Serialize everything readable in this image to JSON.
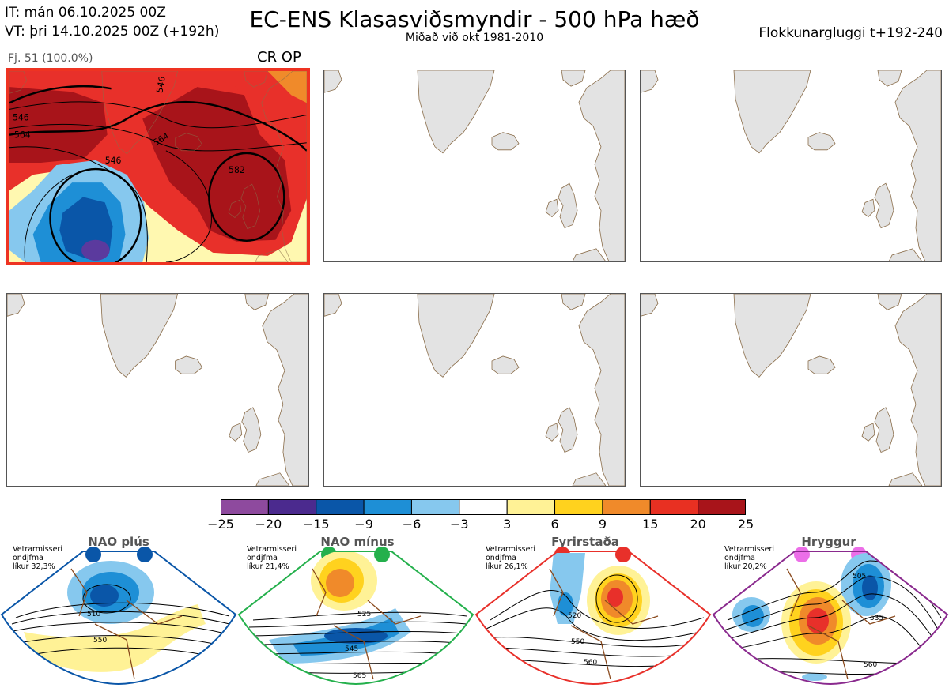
{
  "header": {
    "it_line": "IT: mán 06.10.2025 00Z",
    "vt_line": "VT: þri 14.10.2025 00Z  (+192h)",
    "title": "EC-ENS Klasasviðsmyndir - 500 hPa hæð",
    "subtitle": "Miðað við okt 1981-2010",
    "window": "Flokkunargluggi t+192-240"
  },
  "cluster": {
    "count_label": "Fj. 51 (100.0%)",
    "regime_label": "CR OP",
    "highlight_color": "#e8302a"
  },
  "maps": {
    "land_color": "#e3e3e3",
    "coast_color": "#8a6d4a"
  },
  "panel1_contours": [
    "546",
    "564",
    "546",
    "582",
    "546",
    "564"
  ],
  "colorbar": {
    "ticks": [
      "−25",
      "−20",
      "−15",
      "−9",
      "−6",
      "−3",
      "3",
      "6",
      "9",
      "15",
      "20",
      "25"
    ],
    "colors": [
      "#8e4a9e",
      "#4b2a8e",
      "#0a56a8",
      "#1e8fd6",
      "#86c8ee",
      "#ffffff",
      "#fff296",
      "#ffd21e",
      "#f08a2a",
      "#e83022",
      "#a8141a"
    ]
  },
  "regimes": [
    {
      "name": "NAO plús",
      "info1": "Vetrarmisseri",
      "info2": "ondjfma",
      "info3": "líkur 32,3%",
      "color": "#0a56a8",
      "labels": [
        "510",
        "550"
      ]
    },
    {
      "name": "NAO mínus",
      "info1": "Vetrarmisseri",
      "info2": "ondjfma",
      "info3": "líkur 21,4%",
      "color": "#24b04c",
      "labels": [
        "525",
        "545",
        "565"
      ]
    },
    {
      "name": "Fyrirstaða",
      "info1": "Vetrarmisseri",
      "info2": "ondjfma",
      "info3": "líkur 26,1%",
      "color": "#e8302a",
      "labels": [
        "520",
        "550",
        "560"
      ]
    },
    {
      "name": "Hryggur",
      "info1": "Vetrarmisseri",
      "info2": "ondjfma",
      "info3": "líkur 20,2%",
      "color": "#8a2a8e",
      "labels": [
        "505",
        "535",
        "560"
      ]
    }
  ],
  "chart_data": {
    "type": "heatmap",
    "title": "EC-ENS Klasasviðsmyndir - 500 hPa hæð",
    "subtitle": "Miðað við okt 1981-2010",
    "variable": "500 hPa geopotential height anomaly",
    "colorbar_levels": [
      -25,
      -20,
      -15,
      -9,
      -6,
      -3,
      3,
      6,
      9,
      15,
      20,
      25
    ],
    "clusters": [
      {
        "label": "Fj. 51 (100.0%)",
        "regime": "CR OP",
        "contour_labels": [
          546,
          564,
          546,
          582,
          546,
          564
        ]
      }
    ],
    "regime_reference": [
      {
        "name": "NAO plús",
        "probability": "32,3%",
        "contour_labels": [
          510,
          550
        ]
      },
      {
        "name": "NAO mínus",
        "probability": "21,4%",
        "contour_labels": [
          525,
          545,
          565
        ]
      },
      {
        "name": "Fyrirstaða",
        "probability": "26,1%",
        "contour_labels": [
          520,
          550,
          560
        ]
      },
      {
        "name": "Hryggur",
        "probability": "20,2%",
        "contour_labels": [
          505,
          535,
          560
        ]
      }
    ]
  }
}
